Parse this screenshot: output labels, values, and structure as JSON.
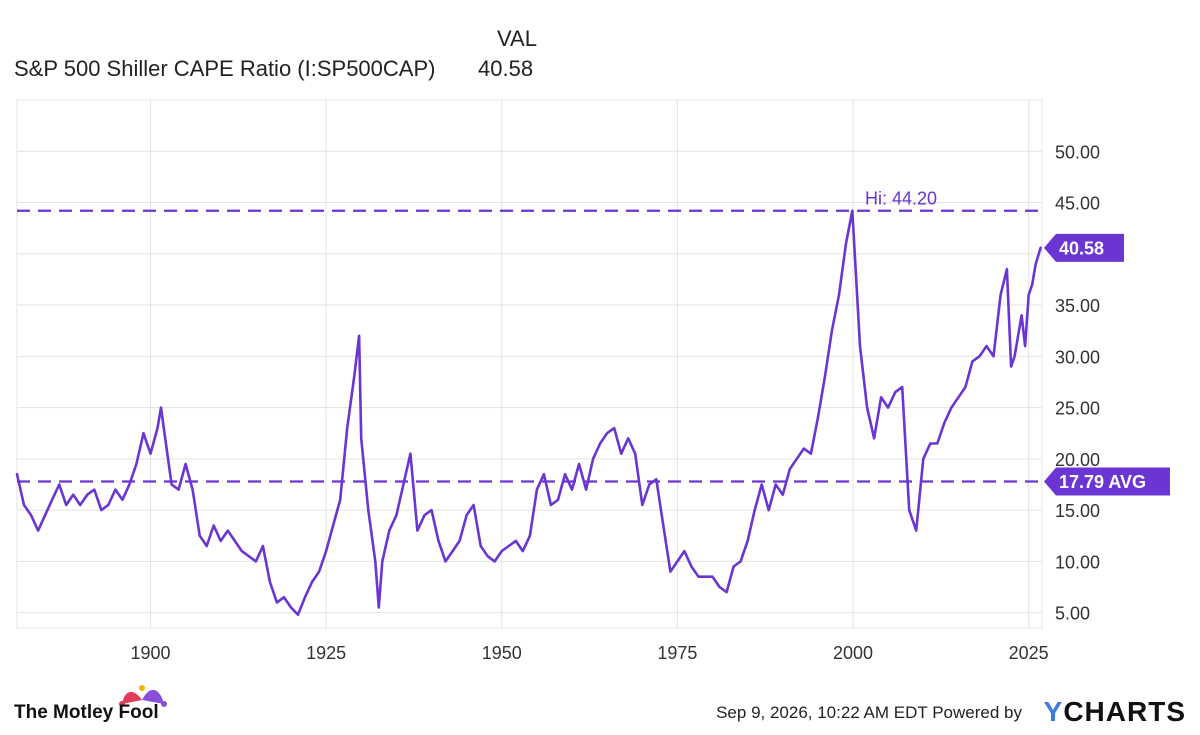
{
  "legend": {
    "value_header": "VAL",
    "series_name": "S&P 500 Shiller CAPE Ratio (I:SP500CAP)",
    "current_value": "40.58"
  },
  "footer": {
    "brand": "The Motley Fool",
    "timestamp": "Sep 9, 2026, 10:22 AM EDT",
    "powered_by": "Powered by",
    "provider_mark": "Y",
    "provider_rest": "CHARTS"
  },
  "colors": {
    "series": "#6a35d2",
    "grid": "#e3e3e3",
    "axis_text": "#333333",
    "jester_red": "#e23b5b",
    "jester_purple": "#8a4fd8",
    "ycharts_blue": "#3d7be0"
  },
  "chart_data": {
    "type": "line",
    "title": "",
    "xlabel": "",
    "ylabel": "",
    "xlim": [
      1881,
      2026.9
    ],
    "ylim": [
      3.5,
      55
    ],
    "x_ticks": [
      1900,
      1925,
      1950,
      1975,
      2000,
      2025
    ],
    "y_ticks": [
      5,
      10,
      15,
      20,
      25,
      30,
      35,
      40,
      45,
      50
    ],
    "y_tick_labels": [
      "5.00",
      "10.00",
      "15.00",
      "20.00",
      "25.00",
      "30.00",
      "35.00",
      "40.00",
      "45.00",
      "50.00"
    ],
    "grid": true,
    "reference_lines": [
      {
        "label": "Hi: 44.20",
        "value": 44.2
      },
      {
        "label": "17.79 AVG",
        "value": 17.79
      }
    ],
    "end_marker": {
      "label": "40.58",
      "value": 40.58
    },
    "series": [
      {
        "name": "S&P 500 Shiller CAPE Ratio (I:SP500CAP)",
        "x": [
          1881,
          1882,
          1883,
          1884,
          1885,
          1886,
          1887,
          1888,
          1889,
          1890,
          1891,
          1892,
          1893,
          1894,
          1895,
          1896,
          1897,
          1898,
          1899,
          1900,
          1901,
          1901.5,
          1902,
          1903,
          1904,
          1905,
          1906,
          1907,
          1908,
          1909,
          1910,
          1911,
          1912,
          1913,
          1914,
          1915,
          1916,
          1917,
          1918,
          1919,
          1920,
          1921,
          1922,
          1923,
          1924,
          1925,
          1926,
          1927,
          1928,
          1929,
          1929.7,
          1930,
          1931,
          1932,
          1932.5,
          1933,
          1934,
          1935,
          1936,
          1937,
          1938,
          1939,
          1940,
          1941,
          1942,
          1943,
          1944,
          1945,
          1946,
          1947,
          1948,
          1949,
          1950,
          1951,
          1952,
          1953,
          1954,
          1955,
          1956,
          1957,
          1958,
          1959,
          1960,
          1961,
          1962,
          1963,
          1964,
          1965,
          1966,
          1967,
          1968,
          1969,
          1970,
          1971,
          1972,
          1973,
          1974,
          1975,
          1976,
          1977,
          1978,
          1979,
          1980,
          1981,
          1982,
          1983,
          1984,
          1985,
          1986,
          1987,
          1988,
          1989,
          1990,
          1991,
          1992,
          1993,
          1994,
          1995,
          1996,
          1997,
          1998,
          1999,
          1999.9,
          2000.5,
          2001,
          2002,
          2003,
          2004,
          2005,
          2006,
          2007,
          2008,
          2009,
          2010,
          2011,
          2012,
          2013,
          2014,
          2015,
          2016,
          2017,
          2018,
          2019,
          2020,
          2021,
          2021.9,
          2022.5,
          2023,
          2024,
          2024.5,
          2025,
          2025.5,
          2026,
          2026.7
        ],
        "values": [
          18.5,
          15.5,
          14.5,
          13.0,
          14.5,
          16.0,
          17.5,
          15.5,
          16.5,
          15.5,
          16.5,
          17.0,
          15.0,
          15.5,
          17.0,
          16.0,
          17.5,
          19.5,
          22.5,
          20.5,
          23.0,
          25.0,
          22.5,
          17.5,
          17.0,
          19.5,
          17.0,
          12.5,
          11.5,
          13.5,
          12.0,
          13.0,
          12.0,
          11.0,
          10.5,
          10.0,
          11.5,
          8.0,
          6.0,
          6.5,
          5.5,
          4.8,
          6.5,
          8.0,
          9.0,
          11.0,
          13.5,
          16.0,
          23.0,
          28.0,
          32.0,
          22.0,
          15.0,
          10.0,
          5.5,
          10.0,
          13.0,
          14.5,
          17.5,
          20.5,
          13.0,
          14.5,
          15.0,
          12.0,
          10.0,
          11.0,
          12.0,
          14.5,
          15.5,
          11.5,
          10.5,
          10.0,
          11.0,
          11.5,
          12.0,
          11.0,
          12.5,
          17.0,
          18.5,
          15.5,
          16.0,
          18.5,
          17.0,
          19.5,
          17.0,
          20.0,
          21.5,
          22.5,
          23.0,
          20.5,
          22.0,
          20.5,
          15.5,
          17.5,
          18.0,
          13.5,
          9.0,
          10.0,
          11.0,
          9.5,
          8.5,
          8.5,
          8.5,
          7.5,
          7.0,
          9.5,
          10.0,
          12.0,
          15.0,
          17.5,
          15.0,
          17.5,
          16.5,
          19.0,
          20.0,
          21.0,
          20.5,
          24.0,
          28.0,
          32.5,
          36.0,
          41.0,
          44.2,
          37.0,
          31.0,
          25.0,
          22.0,
          26.0,
          25.0,
          26.5,
          27.0,
          15.0,
          13.0,
          20.0,
          21.5,
          21.5,
          23.5,
          25.0,
          26.0,
          27.0,
          29.5,
          30.0,
          31.0,
          30.0,
          36.0,
          38.5,
          29.0,
          30.0,
          34.0,
          31.0,
          36.0,
          37.0,
          39.0,
          40.58
        ]
      }
    ]
  }
}
